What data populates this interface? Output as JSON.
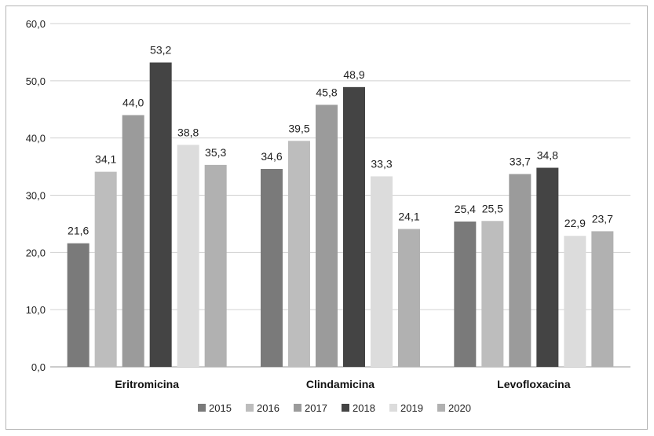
{
  "chart_data": {
    "type": "bar",
    "categories": [
      "Eritromicina",
      "Clindamicina",
      "Levofloxacina"
    ],
    "series": [
      {
        "name": "2015",
        "color": "#7a7a7a",
        "values": [
          21.6,
          34.6,
          25.4
        ]
      },
      {
        "name": "2016",
        "color": "#bdbdbd",
        "values": [
          34.1,
          39.5,
          25.5
        ]
      },
      {
        "name": "2017",
        "color": "#9b9b9b",
        "values": [
          44.0,
          45.8,
          33.7
        ]
      },
      {
        "name": "2018",
        "color": "#444444",
        "values": [
          53.2,
          48.9,
          34.8
        ]
      },
      {
        "name": "2019",
        "color": "#dcdcdc",
        "values": [
          38.8,
          33.3,
          22.9
        ]
      },
      {
        "name": "2020",
        "color": "#b1b1b1",
        "values": [
          35.3,
          24.1,
          23.7
        ]
      }
    ],
    "ylim": [
      0,
      60
    ],
    "yticks": [
      "0,0",
      "10,0",
      "20,0",
      "30,0",
      "40,0",
      "50,0",
      "60,0"
    ],
    "data_labels": [
      [
        "21,6",
        "34,6",
        "25,4"
      ],
      [
        "34,1",
        "39,5",
        "25,5"
      ],
      [
        "44,0",
        "45,8",
        "33,7"
      ],
      [
        "53,2",
        "48,9",
        "34,8"
      ],
      [
        "38,8",
        "33,3",
        "22,9"
      ],
      [
        "35,3",
        "24,1",
        "23,7"
      ]
    ],
    "grid": true,
    "legend_position": "bottom",
    "title": "",
    "xlabel": "",
    "ylabel": ""
  }
}
